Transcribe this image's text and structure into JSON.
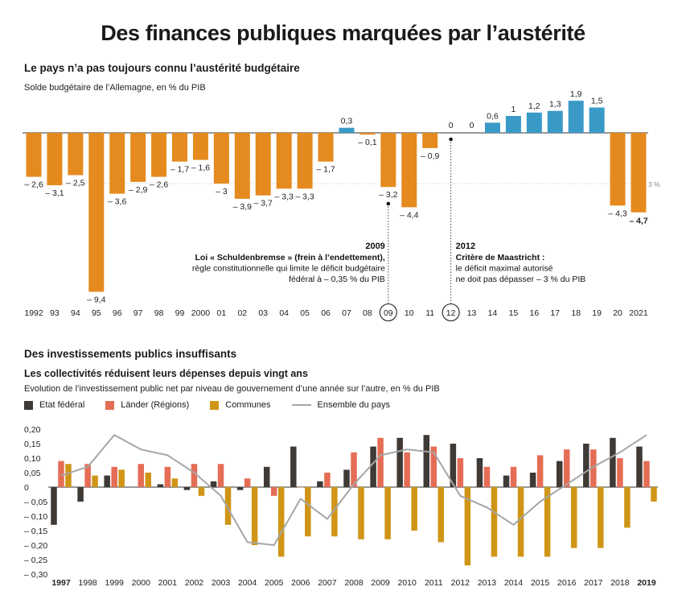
{
  "main_title": "Des finances publiques marquées par l’austérité",
  "colors": {
    "orange": "#e58a1f",
    "blue": "#3a9ac7",
    "federal": "#3f3a36",
    "lander": "#e56d55",
    "communes": "#cf9516",
    "total": "#a6a6a6"
  },
  "chart1": {
    "section_title": "Le pays n’a pas toujours connu l’austérité budgétaire",
    "subtitle": "Solde budgétaire de l’Allemagne, en % du PIB",
    "threshold_label": "– 3 %",
    "annotation_2009": {
      "year": "2009",
      "lines": [
        "Loi « Schuldenbremse » (frein à l’endettement),",
        "règle constitutionnelle qui limite le déficit budgétaire",
        "fédéral à – 0,35 % du PIB"
      ]
    },
    "annotation_2012": {
      "year": "2012",
      "lines": [
        "Critère de Maastricht :",
        "le déficit maximal autorisé",
        "ne doit pas dépasser – 3 % du PIB"
      ]
    }
  },
  "chart2": {
    "section_title": "Des investissements publics insuffisants",
    "subtitle_bold": "Les collectivités réduisent leurs dépenses depuis vingt ans",
    "subtitle": "Evolution de l’investissement public net par niveau de gouvernement d’une année sur l’autre, en % du PIB",
    "legend": [
      "Etat fédéral",
      "Länder (Régions)",
      "Communes",
      "Ensemble du pays"
    ]
  },
  "chart_data": [
    {
      "type": "bar",
      "title": "Le pays n’a pas toujours connu l’austérité budgétaire",
      "ylabel": "Solde budgétaire, en % du PIB",
      "ylim": [
        -9.4,
        1.9
      ],
      "reference_line": -3,
      "highlighted_years": [
        "09",
        "12"
      ],
      "categories": [
        "1992",
        "93",
        "94",
        "95",
        "96",
        "97",
        "98",
        "99",
        "2000",
        "01",
        "02",
        "03",
        "04",
        "05",
        "06",
        "07",
        "08",
        "09",
        "10",
        "11",
        "12",
        "13",
        "14",
        "15",
        "16",
        "17",
        "18",
        "19",
        "20",
        "2021"
      ],
      "values": [
        -2.6,
        -3.1,
        -2.5,
        -9.4,
        -3.6,
        -2.9,
        -2.6,
        -1.7,
        -1.6,
        -3,
        -3.9,
        -3.7,
        -3.3,
        -3.3,
        -1.7,
        0.3,
        -0.1,
        -3.2,
        -4.4,
        -0.9,
        0,
        0,
        0.6,
        1,
        1.2,
        1.3,
        1.9,
        1.5,
        -4.3,
        -4.7
      ],
      "value_labels": [
        "– 2,6",
        "– 3,1",
        "– 2,5",
        "– 9,4",
        "– 3,6",
        "– 2,9",
        "– 2,6",
        "– 1,7",
        "– 1,6",
        "– 3",
        "– 3,9",
        "– 3,7",
        "– 3,3",
        "– 3,3",
        "– 1,7",
        "0,3",
        "– 0,1",
        "– 3,2",
        "– 4,4",
        "– 0,9",
        "0",
        "0",
        "0,6",
        "1",
        "1,2",
        "1,3",
        "1,9",
        "1,5",
        "– 4,3",
        "– 4,7"
      ],
      "grid": false
    },
    {
      "type": "bar",
      "title": "Les collectivités réduisent leurs dépenses depuis vingt ans",
      "categories": [
        "1997",
        "1998",
        "1999",
        "2000",
        "2001",
        "2002",
        "2003",
        "2004",
        "2005",
        "2006",
        "2007",
        "2008",
        "2009",
        "2010",
        "2011",
        "2012",
        "2013",
        "2014",
        "2015",
        "2016",
        "2017",
        "2018",
        "2019"
      ],
      "ylim": [
        -0.3,
        0.2
      ],
      "ytick_labels": [
        "0,20",
        "0,15",
        "0,10",
        "0,05",
        "0",
        "– 0,05",
        "– 0,10",
        "– 0,15",
        "– 0,20",
        "– 0,25",
        "– 0,30"
      ],
      "series": [
        {
          "name": "Etat fédéral",
          "type": "bar",
          "values": [
            -0.13,
            -0.05,
            0.04,
            0,
            0.01,
            -0.01,
            0.02,
            -0.01,
            0.07,
            0.14,
            0.02,
            0.06,
            0.14,
            0.17,
            0.18,
            0.15,
            0.1,
            0.04,
            0.05,
            0.09,
            0.15,
            0.17,
            0.14
          ]
        },
        {
          "name": "Länder (Régions)",
          "type": "bar",
          "values": [
            0.09,
            0.08,
            0.07,
            0.08,
            0.07,
            0.08,
            0.08,
            0.03,
            -0.03,
            0,
            0.05,
            0.12,
            0.17,
            0.12,
            0.14,
            0.1,
            0.07,
            0.07,
            0.11,
            0.13,
            0.13,
            0.1,
            0.09
          ]
        },
        {
          "name": "Communes",
          "type": "bar",
          "values": [
            0.08,
            0.04,
            0.06,
            0.05,
            0.03,
            -0.03,
            -0.13,
            -0.2,
            -0.24,
            -0.17,
            -0.17,
            -0.18,
            -0.18,
            -0.15,
            -0.19,
            -0.27,
            -0.24,
            -0.24,
            -0.24,
            -0.21,
            -0.21,
            -0.14,
            -0.05
          ]
        },
        {
          "name": "Ensemble du pays",
          "type": "line",
          "values": [
            0.04,
            0.07,
            0.18,
            0.13,
            0.11,
            0.05,
            -0.03,
            -0.19,
            -0.2,
            -0.04,
            -0.11,
            0.01,
            0.11,
            0.13,
            0.12,
            -0.03,
            -0.07,
            -0.13,
            -0.05,
            0.01,
            0.07,
            0.12,
            0.18
          ]
        }
      ],
      "grid": false,
      "legend_position": "top-left"
    }
  ]
}
